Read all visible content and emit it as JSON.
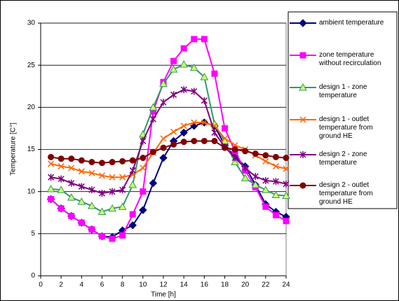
{
  "chart_data": {
    "type": "line",
    "x_label": "Time [h]",
    "y_label": "Temperature [C°]",
    "x": [
      1,
      2,
      3,
      4,
      5,
      6,
      7,
      8,
      9,
      10,
      11,
      12,
      13,
      14,
      15,
      16,
      17,
      18,
      19,
      20,
      21,
      22,
      23,
      24
    ],
    "xlim": [
      0,
      24
    ],
    "xticks": [
      0,
      2,
      4,
      6,
      8,
      10,
      12,
      14,
      16,
      18,
      20,
      22,
      24
    ],
    "ylim": [
      0,
      30
    ],
    "yticks": [
      0,
      5,
      10,
      15,
      20,
      25,
      30
    ],
    "grid": true,
    "legend": "right",
    "series": [
      {
        "name": "ambient temperature",
        "color": "#000080",
        "marker": "diamond",
        "marker_fill": "#000080",
        "values": [
          9.1,
          8.0,
          7.1,
          6.3,
          5.5,
          4.7,
          4.6,
          5.4,
          6.0,
          7.8,
          11.0,
          14.0,
          16.0,
          17.0,
          17.8,
          18.2,
          17.8,
          15.5,
          14.2,
          13.0,
          10.8,
          8.5,
          7.6,
          7.0
        ]
      },
      {
        "name": "zone temperature without recirculation",
        "color": "#ff00ff",
        "marker": "square",
        "marker_fill": "#ff00ff",
        "values": [
          9.1,
          8.0,
          7.1,
          6.3,
          5.5,
          4.7,
          4.4,
          4.8,
          7.3,
          10.0,
          19.5,
          23.0,
          25.5,
          27.0,
          28.1,
          28.1,
          24.0,
          17.5,
          14.8,
          12.5,
          10.5,
          8.2,
          7.2,
          6.5
        ]
      },
      {
        "name": "design 1 - zone temperature",
        "color": "#339966",
        "marker": "triangle",
        "marker_fill": "#ccff66",
        "values": [
          10.3,
          10.2,
          9.3,
          8.8,
          8.3,
          7.6,
          8.0,
          8.2,
          10.8,
          16.8,
          20.0,
          22.8,
          24.5,
          25.1,
          24.7,
          23.6,
          18.0,
          16.0,
          13.5,
          11.6,
          10.8,
          10.2,
          9.6,
          9.5
        ]
      },
      {
        "name": "design 1 - outlet temperature from ground HE",
        "color": "#ff6600",
        "marker": "x",
        "marker_fill": "none",
        "values": [
          13.3,
          13.0,
          12.8,
          12.4,
          12.2,
          11.9,
          11.7,
          11.7,
          12.0,
          12.8,
          14.6,
          16.3,
          17.1,
          17.8,
          18.2,
          18.2,
          17.8,
          16.3,
          15.5,
          15.0,
          14.3,
          13.6,
          13.0,
          12.7
        ]
      },
      {
        "name": "design 2 - zone temperature",
        "color": "#800080",
        "marker": "star",
        "marker_fill": "none",
        "values": [
          11.7,
          11.5,
          11.0,
          10.6,
          10.2,
          9.8,
          10.0,
          10.2,
          12.5,
          16.0,
          18.6,
          20.6,
          21.5,
          22.1,
          21.9,
          20.8,
          17.0,
          15.3,
          14.0,
          12.8,
          11.8,
          11.3,
          11.2,
          10.9
        ]
      },
      {
        "name": "design 2 - outlet temperature from ground HE",
        "color": "#800000",
        "marker": "circle",
        "marker_fill": "#800000",
        "values": [
          14.1,
          13.9,
          13.9,
          13.7,
          13.5,
          13.4,
          13.5,
          13.6,
          13.7,
          14.0,
          14.7,
          15.2,
          15.6,
          15.9,
          16.0,
          16.0,
          16.0,
          15.2,
          15.0,
          14.8,
          14.5,
          14.3,
          14.1,
          14.0
        ]
      }
    ]
  }
}
